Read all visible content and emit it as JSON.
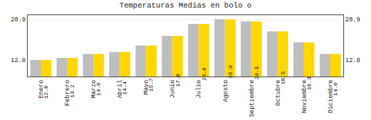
{
  "chart_data": {
    "type": "bar",
    "title": "Temperaturas Medias en bolo o",
    "categories": [
      "Enero",
      "Febrero",
      "Marzo",
      "Abril",
      "Mayo",
      "Junio",
      "Julio",
      "Agosto",
      "Septiembre",
      "Octubre",
      "Noviembre",
      "Diciembre"
    ],
    "series": [
      {
        "color": "#BEBEBE",
        "values": [
          12.8,
          13.2,
          14.0,
          14.4,
          15.7,
          17.6,
          20.0,
          20.9,
          20.5,
          18.5,
          16.3,
          14.0
        ]
      },
      {
        "color": "#FFD700",
        "values": [
          12.8,
          13.2,
          14.0,
          14.4,
          15.7,
          17.6,
          20.0,
          20.9,
          20.5,
          18.5,
          16.3,
          14.0
        ],
        "data_labels": true,
        "value_labels": [
          "12.8",
          "13.2",
          "14.0",
          "14.4",
          "15.7",
          "17.6",
          "20.0",
          "20.9",
          "20.5",
          "18.5",
          "16.3",
          "14.0"
        ]
      }
    ],
    "ylim": [
      9.5,
      21.736
    ],
    "yticks": [
      12.8,
      20.9
    ],
    "y2lim": [
      9.5,
      21.736
    ],
    "y2ticks": [
      12.8,
      20.9
    ],
    "grid": true
  }
}
